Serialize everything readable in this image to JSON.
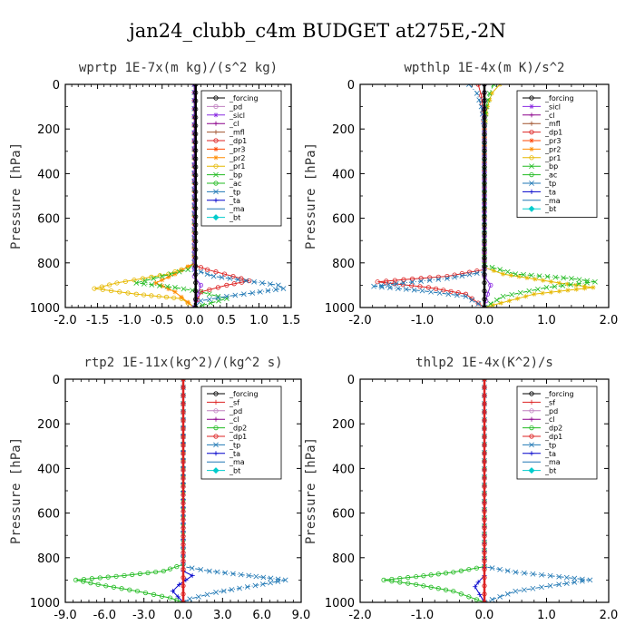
{
  "figure": {
    "title": "jan24_clubb_c4m  BUDGET at275E,-2N"
  },
  "chart_data": [
    {
      "type": "line",
      "title": "wprtp  1E-7x(m kg)/(s^2 kg)",
      "ylabel": "Pressure [hPa]",
      "xlim": [
        -2.0,
        1.5
      ],
      "ylim": [
        1000,
        0
      ],
      "x_ticks": [
        "-2.0",
        "-1.5",
        "-1.0",
        "-0.5",
        "0.0",
        "0.5",
        "1.0",
        "1.5"
      ],
      "x_tick_values": [
        -2.0,
        -1.5,
        -1.0,
        -0.5,
        0.0,
        0.5,
        1.0,
        1.5
      ],
      "y_ticks": [
        "0",
        "200",
        "400",
        "600",
        "800",
        "1000"
      ],
      "y_tick_values": [
        0,
        200,
        400,
        600,
        800,
        1000
      ],
      "legend_position": "top-right",
      "legend": [
        "_forcing",
        "_pd",
        "_sicl",
        "_cl",
        "_mfl",
        "_dp1",
        "_pr3",
        "_pr2",
        "_pr1",
        "_bp",
        "_ac",
        "_tp",
        "_ta",
        "_ma",
        "_bt"
      ],
      "series": [
        {
          "name": "_pr1",
          "color": "#e6b800",
          "marker": "circle",
          "points": [
            [
              0,
              0
            ],
            [
              0,
              800
            ],
            [
              -0.1,
              820
            ],
            [
              -0.4,
              850
            ],
            [
              -1.2,
              890
            ],
            [
              -1.55,
              915
            ],
            [
              -0.9,
              940
            ],
            [
              -0.2,
              960
            ],
            [
              0,
              1000
            ]
          ]
        },
        {
          "name": "_pr2",
          "color": "#ff8c00",
          "marker": "star",
          "points": [
            [
              0,
              0
            ],
            [
              0,
              800
            ],
            [
              -0.3,
              850
            ],
            [
              -0.6,
              890
            ],
            [
              -0.3,
              930
            ],
            [
              0,
              1000
            ]
          ]
        },
        {
          "name": "_ac",
          "color": "#22bb22",
          "marker": "x",
          "points": [
            [
              0,
              0
            ],
            [
              0,
              800
            ],
            [
              -0.1,
              830
            ],
            [
              -0.5,
              860
            ],
            [
              -0.9,
              890
            ],
            [
              -0.3,
              910
            ],
            [
              0.1,
              930
            ],
            [
              0.5,
              960
            ],
            [
              0,
              1000
            ]
          ]
        },
        {
          "name": "_dp1",
          "color": "#dd2222",
          "marker": "circle",
          "points": [
            [
              0,
              0
            ],
            [
              0,
              810
            ],
            [
              0.2,
              830
            ],
            [
              0.6,
              860
            ],
            [
              0.85,
              880
            ],
            [
              0.5,
              900
            ],
            [
              0.1,
              930
            ],
            [
              0,
              1000
            ]
          ]
        },
        {
          "name": "_tp",
          "color": "#1f77b4",
          "marker": "x",
          "points": [
            [
              0,
              0
            ],
            [
              0,
              830
            ],
            [
              0.3,
              860
            ],
            [
              0.8,
              880
            ],
            [
              1.3,
              900
            ],
            [
              1.38,
              915
            ],
            [
              0.9,
              935
            ],
            [
              0.5,
              950
            ],
            [
              0.1,
              970
            ],
            [
              0,
              1000
            ]
          ]
        },
        {
          "name": "_bp",
          "color": "#8a2be2",
          "marker": "circle",
          "points": [
            [
              0,
              0
            ],
            [
              0,
              860
            ],
            [
              0.1,
              900
            ],
            [
              0.05,
              940
            ],
            [
              0,
              1000
            ]
          ]
        },
        {
          "name": "_forcing",
          "color": "#000000",
          "marker": "circle",
          "points": [
            [
              0.02,
              0
            ],
            [
              0.02,
              1000
            ]
          ]
        }
      ]
    },
    {
      "type": "line",
      "title": "wpthlp  1E-4x(m K)/s^2",
      "ylabel": "Pressure [hPa]",
      "xlim": [
        -2.0,
        2.0
      ],
      "ylim": [
        1000,
        0
      ],
      "x_ticks": [
        "-2.0",
        "-1.0",
        "0.0",
        "1.0",
        "2.0"
      ],
      "x_tick_values": [
        -2.0,
        -1.0,
        0.0,
        1.0,
        2.0
      ],
      "y_ticks": [
        "0",
        "200",
        "400",
        "600",
        "800",
        "1000"
      ],
      "y_tick_values": [
        0,
        200,
        400,
        600,
        800,
        1000
      ],
      "legend_position": "top-right",
      "legend": [
        "_forcing",
        "_sicl",
        "_cl",
        "_mfl",
        "_dp1",
        "_pr3",
        "_pr2",
        "_pr1",
        "_bp",
        "_ac",
        "_tp",
        "_ta",
        "_ma",
        "_bt"
      ],
      "series": [
        {
          "name": "_pr2",
          "color": "#e6b800",
          "marker": "star",
          "points": [
            [
              0.25,
              0
            ],
            [
              0.12,
              40
            ],
            [
              0.05,
              100
            ],
            [
              0,
              200
            ],
            [
              0,
              820
            ],
            [
              0.3,
              850
            ],
            [
              1.2,
              890
            ],
            [
              1.75,
              910
            ],
            [
              0.8,
              940
            ],
            [
              0,
              1000
            ]
          ]
        },
        {
          "name": "_ac",
          "color": "#22bb22",
          "marker": "x",
          "points": [
            [
              0.15,
              0
            ],
            [
              0.08,
              40
            ],
            [
              0.03,
              100
            ],
            [
              0,
              200
            ],
            [
              0,
              810
            ],
            [
              0.5,
              850
            ],
            [
              1.4,
              870
            ],
            [
              1.78,
              885
            ],
            [
              1.0,
              910
            ],
            [
              0.3,
              950
            ],
            [
              0,
              1000
            ]
          ]
        },
        {
          "name": "_dp1",
          "color": "#dd2222",
          "marker": "circle",
          "points": [
            [
              -0.1,
              0
            ],
            [
              -0.05,
              50
            ],
            [
              0,
              200
            ],
            [
              0,
              830
            ],
            [
              -0.6,
              860
            ],
            [
              -1.3,
              875
            ],
            [
              -1.72,
              885
            ],
            [
              -0.9,
              910
            ],
            [
              -0.3,
              940
            ],
            [
              0,
              1000
            ]
          ]
        },
        {
          "name": "_tp",
          "color": "#1f77b4",
          "marker": "x",
          "points": [
            [
              -0.25,
              0
            ],
            [
              -0.12,
              40
            ],
            [
              -0.05,
              100
            ],
            [
              0,
              200
            ],
            [
              0,
              840
            ],
            [
              -0.6,
              870
            ],
            [
              -1.3,
              890
            ],
            [
              -1.78,
              905
            ],
            [
              -1.0,
              925
            ],
            [
              -0.3,
              950
            ],
            [
              0,
              1000
            ]
          ]
        },
        {
          "name": "_bp",
          "color": "#8a2be2",
          "marker": "circle",
          "points": [
            [
              0,
              0
            ],
            [
              0,
              860
            ],
            [
              0.1,
              900
            ],
            [
              0.05,
              940
            ],
            [
              0,
              1000
            ]
          ]
        },
        {
          "name": "_forcing",
          "color": "#000000",
          "marker": "circle",
          "points": [
            [
              0,
              0
            ],
            [
              0,
              1000
            ]
          ]
        }
      ]
    },
    {
      "type": "line",
      "title": "rtp2  1E-11x(kg^2)/(kg^2 s)",
      "ylabel": "Pressure [hPa]",
      "xlim": [
        -9.0,
        9.0
      ],
      "ylim": [
        1000,
        0
      ],
      "x_ticks": [
        "-9.0",
        "-6.0",
        "-3.0",
        "0.0",
        "3.0",
        "6.0",
        "9.0"
      ],
      "x_tick_values": [
        -9.0,
        -6.0,
        -3.0,
        0.0,
        3.0,
        6.0,
        9.0
      ],
      "y_ticks": [
        "0",
        "200",
        "400",
        "600",
        "800",
        "1000"
      ],
      "y_tick_values": [
        0,
        200,
        400,
        600,
        800,
        1000
      ],
      "legend_position": "top-right",
      "legend": [
        "_forcing",
        "_sf",
        "_pd",
        "_cl",
        "_dp2",
        "_dp1",
        "_tp",
        "_ta",
        "_ma",
        "_bt"
      ],
      "series": [
        {
          "name": "_dp2",
          "color": "#22bb22",
          "marker": "circle",
          "points": [
            [
              0,
              0
            ],
            [
              0,
              830
            ],
            [
              -1.5,
              860
            ],
            [
              -4.5,
              880
            ],
            [
              -8.2,
              900
            ],
            [
              -6.5,
              920
            ],
            [
              -3.5,
              950
            ],
            [
              -1.0,
              980
            ],
            [
              0,
              1000
            ]
          ]
        },
        {
          "name": "_tp",
          "color": "#1f77b4",
          "marker": "x",
          "points": [
            [
              0,
              0
            ],
            [
              0,
              840
            ],
            [
              2.0,
              860
            ],
            [
              5.0,
              880
            ],
            [
              7.8,
              900
            ],
            [
              5.5,
              925
            ],
            [
              2.5,
              955
            ],
            [
              0.5,
              985
            ],
            [
              0,
              1000
            ]
          ]
        },
        {
          "name": "_ta",
          "color": "#0000cc",
          "marker": "plus",
          "points": [
            [
              0,
              0
            ],
            [
              0,
              860
            ],
            [
              0.7,
              880
            ],
            [
              -0.3,
              920
            ],
            [
              -0.8,
              950
            ],
            [
              0,
              1000
            ]
          ]
        },
        {
          "name": "_forcing",
          "color": "#dd2222",
          "marker": "circle",
          "points": [
            [
              0,
              0
            ],
            [
              0,
              1000
            ]
          ]
        }
      ]
    },
    {
      "type": "line",
      "title": "thlp2  1E-4x(K^2)/s",
      "ylabel": "Pressure [hPa]",
      "xlim": [
        -2.0,
        2.0
      ],
      "ylim": [
        1000,
        0
      ],
      "x_ticks": [
        "-2.0",
        "-1.0",
        "0.0",
        "1.0",
        "2.0"
      ],
      "x_tick_values": [
        -2.0,
        -1.0,
        0.0,
        1.0,
        2.0
      ],
      "y_ticks": [
        "0",
        "200",
        "400",
        "600",
        "800",
        "1000"
      ],
      "y_tick_values": [
        0,
        200,
        400,
        600,
        800,
        1000
      ],
      "legend_position": "top-right",
      "legend": [
        "_forcing",
        "_sf",
        "_pd",
        "_cl",
        "_dp2",
        "_dp1",
        "_tp",
        "_ta",
        "_ma",
        "_bt"
      ],
      "series": [
        {
          "name": "_dp2",
          "color": "#22bb22",
          "marker": "circle",
          "points": [
            [
              0,
              0
            ],
            [
              0,
              840
            ],
            [
              -0.5,
              865
            ],
            [
              -1.1,
              885
            ],
            [
              -1.62,
              900
            ],
            [
              -1.1,
              920
            ],
            [
              -0.5,
              950
            ],
            [
              0,
              1000
            ]
          ]
        },
        {
          "name": "_tp",
          "color": "#1f77b4",
          "marker": "x",
          "points": [
            [
              0,
              0
            ],
            [
              0,
              840
            ],
            [
              0.5,
              865
            ],
            [
              1.2,
              885
            ],
            [
              1.7,
              900
            ],
            [
              1.2,
              920
            ],
            [
              0.5,
              950
            ],
            [
              0,
              1000
            ]
          ]
        },
        {
          "name": "_ta",
          "color": "#0000cc",
          "marker": "plus",
          "points": [
            [
              0,
              0
            ],
            [
              0,
              880
            ],
            [
              -0.1,
              910
            ],
            [
              -0.15,
              930
            ],
            [
              0,
              1000
            ]
          ]
        },
        {
          "name": "_forcing",
          "color": "#dd2222",
          "marker": "circle",
          "points": [
            [
              0,
              0
            ],
            [
              0,
              1000
            ]
          ]
        }
      ]
    }
  ]
}
